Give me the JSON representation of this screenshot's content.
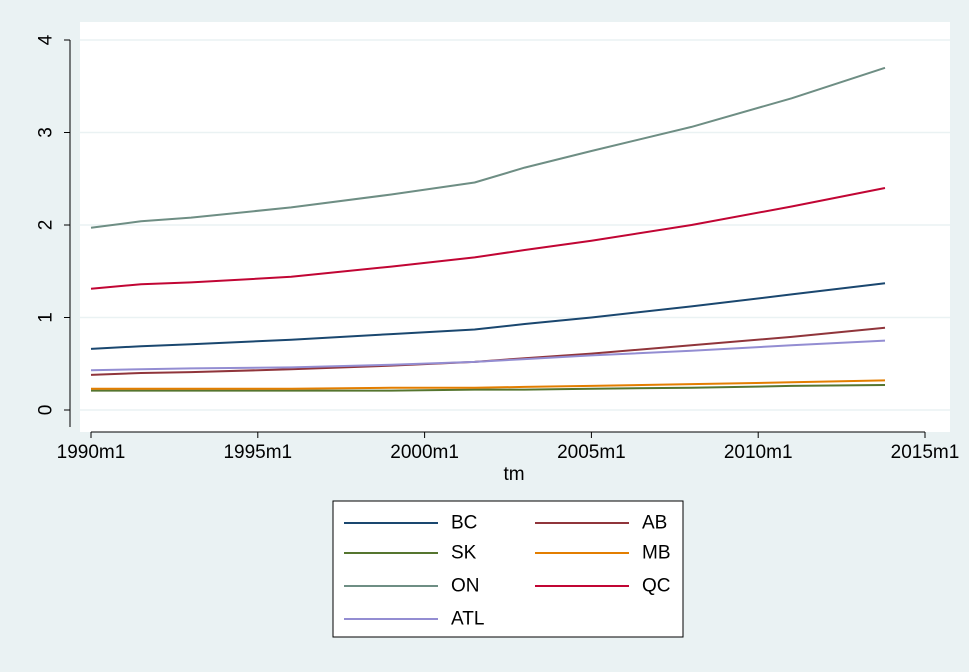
{
  "chart_data": {
    "type": "line",
    "title": "",
    "xlabel": "tm",
    "ylabel": "",
    "grid": true,
    "legend_position": "bottom",
    "xlim": [
      1990.0,
      2015.0
    ],
    "ylim": [
      0,
      4
    ],
    "x_ticks": [
      {
        "value": 1990,
        "label": "1990m1"
      },
      {
        "value": 1995,
        "label": "1995m1"
      },
      {
        "value": 2000,
        "label": "2000m1"
      },
      {
        "value": 2005,
        "label": "2005m1"
      },
      {
        "value": 2010,
        "label": "2010m1"
      },
      {
        "value": 2015,
        "label": "2015m1"
      }
    ],
    "y_ticks": [
      {
        "value": 0,
        "label": "0"
      },
      {
        "value": 1,
        "label": "1"
      },
      {
        "value": 2,
        "label": "2"
      },
      {
        "value": 3,
        "label": "3"
      },
      {
        "value": 4,
        "label": "4"
      }
    ],
    "x": [
      1990,
      1991.5,
      1993,
      1996,
      1999,
      2001.5,
      2003,
      2005,
      2008,
      2011,
      2013.8
    ],
    "series": [
      {
        "name": "BC",
        "color": "#1a476f",
        "values": [
          0.66,
          0.69,
          0.71,
          0.76,
          0.82,
          0.87,
          0.93,
          1.0,
          1.12,
          1.25,
          1.37
        ]
      },
      {
        "name": "AB",
        "color": "#90353b",
        "values": [
          0.38,
          0.4,
          0.41,
          0.44,
          0.48,
          0.52,
          0.56,
          0.61,
          0.7,
          0.79,
          0.89
        ]
      },
      {
        "name": "SK",
        "color": "#55752f",
        "values": [
          0.21,
          0.21,
          0.21,
          0.21,
          0.21,
          0.22,
          0.22,
          0.23,
          0.24,
          0.26,
          0.27
        ]
      },
      {
        "name": "MB",
        "color": "#e37e00",
        "values": [
          0.23,
          0.23,
          0.23,
          0.23,
          0.24,
          0.24,
          0.25,
          0.26,
          0.28,
          0.3,
          0.32
        ]
      },
      {
        "name": "ON",
        "color": "#6e8e84",
        "values": [
          1.97,
          2.04,
          2.08,
          2.19,
          2.33,
          2.46,
          2.62,
          2.8,
          3.06,
          3.37,
          3.7
        ]
      },
      {
        "name": "QC",
        "color": "#c10534",
        "values": [
          1.31,
          1.36,
          1.38,
          1.44,
          1.55,
          1.65,
          1.73,
          1.83,
          2.0,
          2.2,
          2.4
        ]
      },
      {
        "name": "ATL",
        "color": "#938dd2",
        "values": [
          0.43,
          0.44,
          0.45,
          0.46,
          0.49,
          0.52,
          0.55,
          0.59,
          0.64,
          0.7,
          0.75
        ]
      }
    ]
  }
}
